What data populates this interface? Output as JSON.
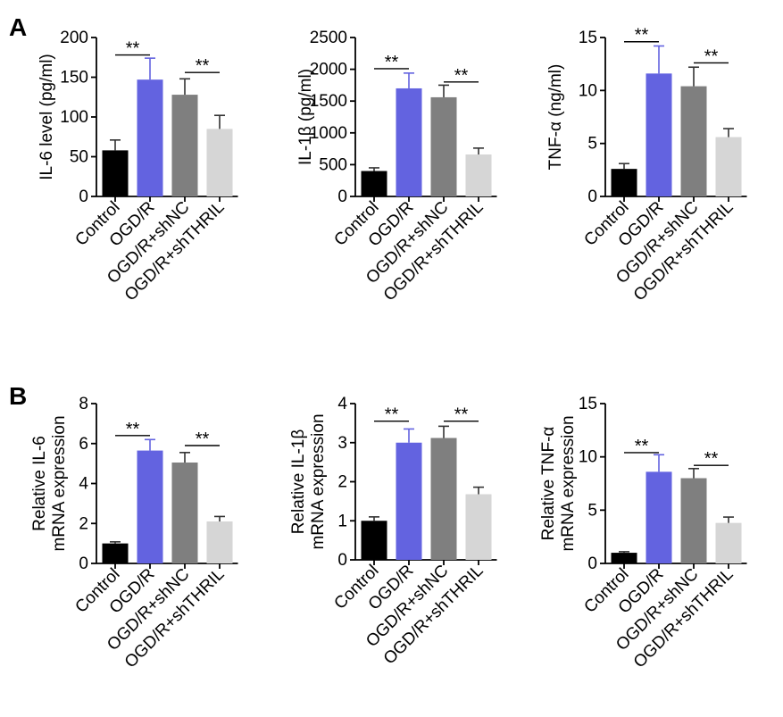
{
  "panel_labels": [
    "A",
    "B"
  ],
  "colors": {
    "Control": "#000000",
    "OGD/R": "#6363e0",
    "OGD/R+shNC": "#7f7f7f",
    "OGD/R+shTHRIL": "#d6d6d6"
  },
  "chart_data": [
    {
      "type": "bar",
      "panel": "A",
      "title": "",
      "xlabel": "",
      "ylabel": "IL-6 level (pg/ml)",
      "categories": [
        "Control",
        "OGD/R",
        "OGD/R+shNC",
        "OGD/R+shTHRIL"
      ],
      "values": [
        58,
        147,
        128,
        85
      ],
      "errors": [
        13,
        27,
        20,
        17
      ],
      "ylim": [
        0,
        200
      ],
      "yticks": [
        "0",
        "50",
        "100",
        "150",
        "200"
      ],
      "significance": [
        {
          "from": "Control",
          "to": "OGD/R",
          "label": "**",
          "y": 178
        },
        {
          "from": "OGD/R+shNC",
          "to": "OGD/R+shTHRIL",
          "label": "**",
          "y": 156
        }
      ]
    },
    {
      "type": "bar",
      "panel": "A",
      "title": "",
      "xlabel": "",
      "ylabel": "IL-1β (pg/ml)",
      "categories": [
        "Control",
        "OGD/R",
        "OGD/R+shNC",
        "OGD/R+shTHRIL"
      ],
      "values": [
        400,
        1700,
        1560,
        660
      ],
      "errors": [
        50,
        240,
        190,
        100
      ],
      "ylim": [
        0,
        2500
      ],
      "yticks": [
        "0",
        "500",
        "1000",
        "1500",
        "2000",
        "2500"
      ],
      "significance": [
        {
          "from": "Control",
          "to": "OGD/R",
          "label": "**",
          "y": 2010
        },
        {
          "from": "OGD/R+shNC",
          "to": "OGD/R+shTHRIL",
          "label": "**",
          "y": 1800
        }
      ]
    },
    {
      "type": "bar",
      "panel": "A",
      "title": "",
      "xlabel": "",
      "ylabel": "TNF-α (ng/ml)",
      "categories": [
        "Control",
        "OGD/R",
        "OGD/R+shNC",
        "OGD/R+shTHRIL"
      ],
      "values": [
        2.6,
        11.6,
        10.4,
        5.6
      ],
      "errors": [
        0.5,
        2.6,
        1.8,
        0.8
      ],
      "ylim": [
        0,
        15
      ],
      "yticks": [
        "0",
        "5",
        "10",
        "15"
      ],
      "significance": [
        {
          "from": "Control",
          "to": "OGD/R",
          "label": "**",
          "y": 14.6
        },
        {
          "from": "OGD/R+shNC",
          "to": "OGD/R+shTHRIL",
          "label": "**",
          "y": 12.6
        }
      ]
    },
    {
      "type": "bar",
      "panel": "B",
      "title": "",
      "xlabel": "",
      "ylabel": "Relative IL-6",
      "ylabel2": "mRNA expression",
      "categories": [
        "Control",
        "OGD/R",
        "OGD/R+shNC",
        "OGD/R+shTHRIL"
      ],
      "values": [
        1.0,
        5.65,
        5.05,
        2.1
      ],
      "errors": [
        0.08,
        0.55,
        0.5,
        0.25
      ],
      "ylim": [
        0,
        8
      ],
      "yticks": [
        "0",
        "2",
        "4",
        "6",
        "8"
      ],
      "significance": [
        {
          "from": "Control",
          "to": "OGD/R",
          "label": "**",
          "y": 6.4
        },
        {
          "from": "OGD/R+shNC",
          "to": "OGD/R+shTHRIL",
          "label": "**",
          "y": 5.9
        }
      ]
    },
    {
      "type": "bar",
      "panel": "B",
      "title": "",
      "xlabel": "",
      "ylabel": "Relative IL-1β",
      "ylabel2": "mRNA expression",
      "categories": [
        "Control",
        "OGD/R",
        "OGD/R+shNC",
        "OGD/R+shTHRIL"
      ],
      "values": [
        1.0,
        3.0,
        3.12,
        1.68
      ],
      "errors": [
        0.1,
        0.35,
        0.3,
        0.18
      ],
      "ylim": [
        0,
        4
      ],
      "yticks": [
        "0",
        "1",
        "2",
        "3",
        "4"
      ],
      "significance": [
        {
          "from": "Control",
          "to": "OGD/R",
          "label": "**",
          "y": 3.55
        },
        {
          "from": "OGD/R+shNC",
          "to": "OGD/R+shTHRIL",
          "label": "**",
          "y": 3.55
        }
      ]
    },
    {
      "type": "bar",
      "panel": "B",
      "title": "",
      "xlabel": "",
      "ylabel": "Relative TNF-α",
      "ylabel2": "mRNA expression",
      "categories": [
        "Control",
        "OGD/R",
        "OGD/R+shNC",
        "OGD/R+shTHRIL"
      ],
      "values": [
        1.0,
        8.6,
        8.0,
        3.8
      ],
      "errors": [
        0.1,
        1.6,
        0.9,
        0.55
      ],
      "ylim": [
        0,
        15
      ],
      "yticks": [
        "0",
        "5",
        "10",
        "15"
      ],
      "significance": [
        {
          "from": "Control",
          "to": "OGD/R",
          "label": "**",
          "y": 10.4
        },
        {
          "from": "OGD/R+shNC",
          "to": "OGD/R+shTHRIL",
          "label": "**",
          "y": 9.2
        }
      ]
    }
  ]
}
